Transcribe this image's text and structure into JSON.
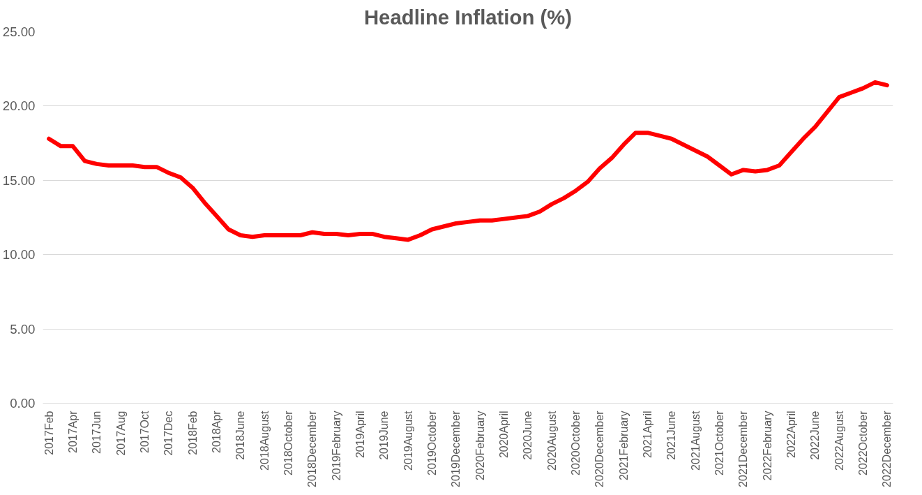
{
  "chart_data": {
    "type": "line",
    "title": "Headline Inflation (%)",
    "categories": [
      "2017Feb",
      null,
      "2017Apr",
      null,
      "2017Jun",
      null,
      "2017Aug",
      null,
      "2017Oct",
      null,
      "2017Dec",
      null,
      "2018Feb",
      null,
      "2018Apr",
      null,
      "2018June",
      null,
      "2018August",
      null,
      "2018October",
      null,
      "2018December",
      null,
      "2019February",
      null,
      "2019April",
      null,
      "2019June",
      null,
      "2019August",
      null,
      "2019October",
      null,
      "2019December",
      null,
      "2020February",
      null,
      "2020April",
      null,
      "2020June",
      null,
      "2020August",
      null,
      "2020October",
      null,
      "2020December",
      null,
      "2021February",
      null,
      "2021April",
      null,
      "2021June",
      null,
      "2021August",
      null,
      "2021October",
      null,
      "2021December",
      null,
      "2022February",
      null,
      "2022April",
      null,
      "2022June",
      null,
      "2022August",
      null,
      "2022October",
      null,
      "2022December"
    ],
    "series": [
      {
        "color": "#ff0000",
        "values": [
          17.8,
          17.3,
          17.3,
          16.3,
          16.1,
          16.0,
          16.0,
          16.0,
          15.9,
          15.9,
          15.5,
          15.2,
          14.5,
          13.5,
          12.6,
          11.7,
          11.3,
          11.2,
          11.3,
          11.3,
          11.3,
          11.3,
          11.5,
          11.4,
          11.4,
          11.3,
          11.4,
          11.4,
          11.2,
          11.1,
          11.0,
          11.3,
          11.7,
          11.9,
          12.1,
          12.2,
          12.3,
          12.3,
          12.4,
          12.5,
          12.6,
          12.9,
          13.4,
          13.8,
          14.3,
          14.9,
          15.8,
          16.5,
          17.4,
          18.2,
          18.2,
          18.0,
          17.8,
          17.4,
          17.0,
          16.6,
          16.0,
          15.4,
          15.7,
          15.6,
          15.7,
          16.0,
          16.9,
          17.8,
          18.6,
          19.6,
          20.6,
          20.9,
          21.2,
          21.6,
          21.4
        ]
      }
    ],
    "ylim": [
      0,
      25
    ],
    "yticks": [
      {
        "value": 0,
        "label": "0.00"
      },
      {
        "value": 5,
        "label": "5.00"
      },
      {
        "value": 10,
        "label": "10.00"
      },
      {
        "value": 15,
        "label": "15.00"
      },
      {
        "value": 20,
        "label": "20.00"
      },
      {
        "value": 25,
        "label": "25.00"
      }
    ],
    "grid": "y",
    "marker": "none",
    "line_style": "solid"
  }
}
